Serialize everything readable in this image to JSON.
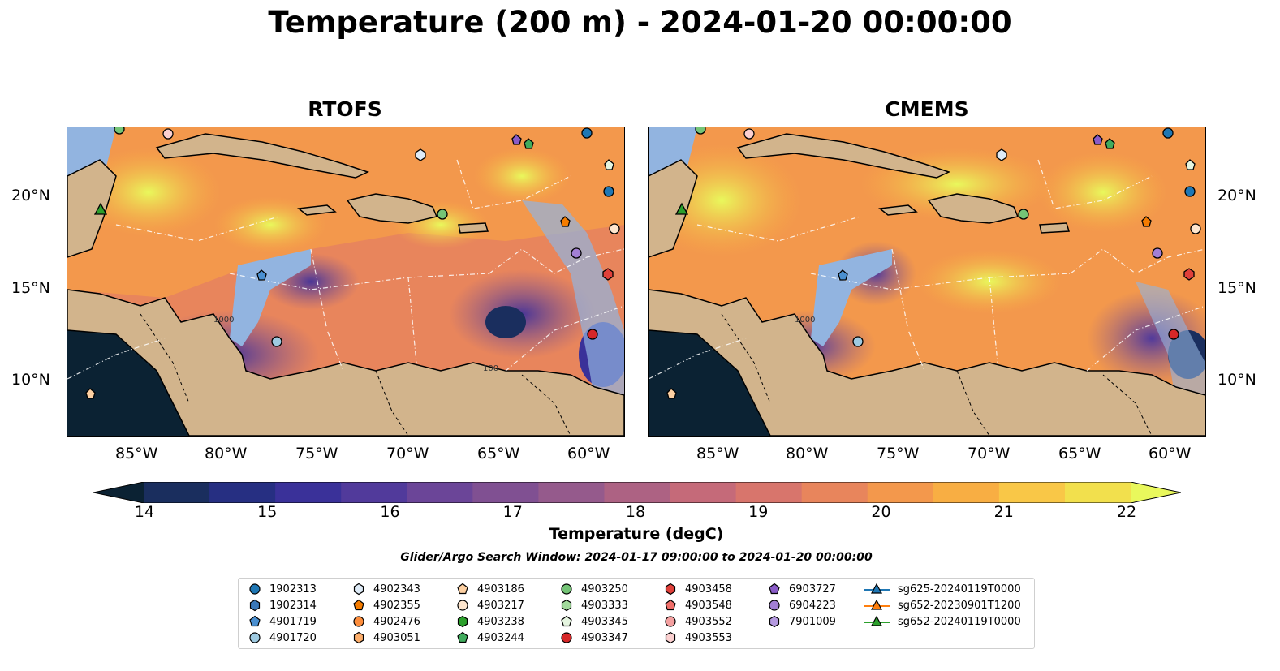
{
  "title": "Temperature (200 m) - 2024-01-20 00:00:00",
  "panels": [
    {
      "title": "RTOFS"
    },
    {
      "title": "CMEMS"
    }
  ],
  "axes": {
    "lat_labels": [
      "20°N",
      "15°N",
      "10°N"
    ],
    "lon_labels": [
      "85°W",
      "80°W",
      "75°W",
      "70°W",
      "65°W",
      "60°W"
    ],
    "contour_labels": [
      "1000",
      "100"
    ]
  },
  "colorbar": {
    "label": "Temperature (degC)",
    "ticks": [
      "14",
      "15",
      "16",
      "17",
      "18",
      "19",
      "20",
      "21",
      "22"
    ],
    "min": 14,
    "max": 22,
    "extend": "both",
    "colors": [
      "#0b2233",
      "#1a2e5e",
      "#262f82",
      "#3a3199",
      "#513a9b",
      "#6b4598",
      "#805092",
      "#955a8c",
      "#ad6283",
      "#c56a79",
      "#d8756c",
      "#e8855c",
      "#f3984c",
      "#f8ae43",
      "#f9c747",
      "#f2e04d",
      "#e9f85c"
    ]
  },
  "search_window": "Glider/Argo Search Window: 2024-01-17 09:00:00 to 2024-01-20 00:00:00",
  "land_color": "#d2b48c",
  "ocean_shallow_color": "#92b4e0",
  "legend": {
    "columns": [
      [
        {
          "label": "1902313",
          "marker": "circle",
          "color": "#1f77b4"
        },
        {
          "label": "1902314",
          "marker": "hexagon",
          "color": "#3a78b8"
        },
        {
          "label": "4901719",
          "marker": "pentagon",
          "color": "#4a8fd0"
        },
        {
          "label": "4901720",
          "marker": "circle",
          "color": "#9ecae1"
        }
      ],
      [
        {
          "label": "4902343",
          "marker": "hexagon",
          "color": "#deebf7"
        },
        {
          "label": "4902355",
          "marker": "pentagon",
          "color": "#f57c00"
        },
        {
          "label": "4902476",
          "marker": "circle",
          "color": "#fd8d3c"
        },
        {
          "label": "4903051",
          "marker": "hexagon",
          "color": "#fdae6b"
        }
      ],
      [
        {
          "label": "4903186",
          "marker": "pentagon",
          "color": "#fdd0a2"
        },
        {
          "label": "4903217",
          "marker": "circle",
          "color": "#fee6ce"
        },
        {
          "label": "4903238",
          "marker": "hexagon",
          "color": "#2ca02c"
        },
        {
          "label": "4903244",
          "marker": "pentagon",
          "color": "#41ab5d"
        }
      ],
      [
        {
          "label": "4903250",
          "marker": "circle",
          "color": "#74c476"
        },
        {
          "label": "4903333",
          "marker": "hexagon",
          "color": "#a1d99b"
        },
        {
          "label": "4903345",
          "marker": "pentagon",
          "color": "#e5f5e0"
        },
        {
          "label": "4903347",
          "marker": "circle",
          "color": "#d62728"
        }
      ],
      [
        {
          "label": "4903458",
          "marker": "hexagon",
          "color": "#e0403a"
        },
        {
          "label": "4903548",
          "marker": "pentagon",
          "color": "#f06f6a"
        },
        {
          "label": "4903552",
          "marker": "circle",
          "color": "#f4a0a0"
        },
        {
          "label": "4903553",
          "marker": "hexagon",
          "color": "#fbd0d0"
        }
      ],
      [
        {
          "label": "6903727",
          "marker": "pentagon",
          "color": "#8a5cc8"
        },
        {
          "label": "6904223",
          "marker": "circle",
          "color": "#a27fd4"
        },
        {
          "label": "7901009",
          "marker": "hexagon",
          "color": "#b59ae0"
        }
      ],
      [
        {
          "label": "sg625-20240119T0000",
          "marker": "triangle-line",
          "color": "#1f77b4"
        },
        {
          "label": "sg652-20230901T1200",
          "marker": "triangle-line",
          "color": "#ff7f0e"
        },
        {
          "label": "sg652-20240119T0000",
          "marker": "triangle-line",
          "color": "#2ca02c"
        }
      ]
    ]
  }
}
